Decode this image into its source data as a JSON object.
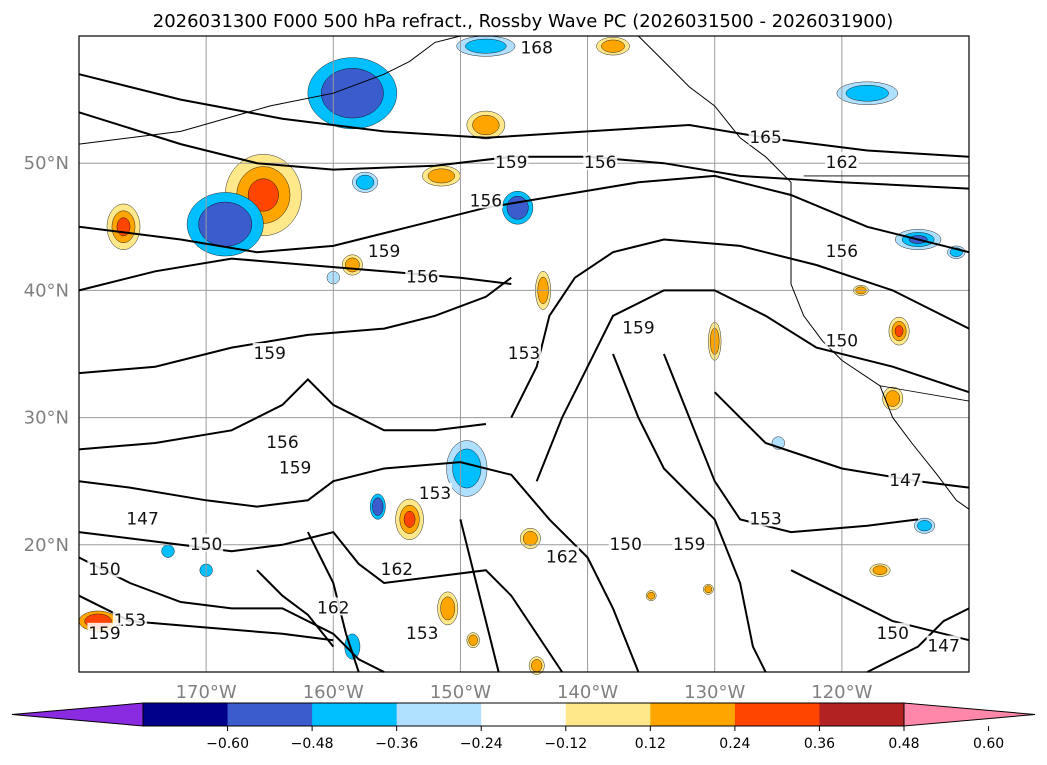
{
  "chart_data": {
    "type": "map-contour",
    "title": "2026031300 F000 500 hPa refract., Rossby Wave PC (2026031500 - 2026031900)",
    "lat_ticks": [
      50,
      40,
      30,
      20
    ],
    "lat_labels": [
      "50°N",
      "40°N",
      "30°N",
      "20°N"
    ],
    "lon_ticks": [
      -170,
      -160,
      -150,
      -140,
      -130,
      -120
    ],
    "lon_labels": [
      "170°W",
      "160°W",
      "150°W",
      "140°W",
      "130°W",
      "120°W"
    ],
    "extent": {
      "lon_min": -180,
      "lon_max": -110,
      "lat_min": 10,
      "lat_max": 60
    },
    "grid": true,
    "colorbar": {
      "extend": "both",
      "colors": [
        "#8a2be2",
        "#00008b",
        "#3a5ccc",
        "#00bfff",
        "#b0e0ff",
        "#ffffff",
        "#ffe88a",
        "#ffa500",
        "#ff4500",
        "#b22222",
        "#ff88aa"
      ],
      "ticks": [
        -0.6,
        -0.48,
        -0.36,
        -0.24,
        -0.12,
        0.12,
        0.24,
        0.36,
        0.48,
        0.6
      ],
      "tick_labels": [
        "−0.60",
        "−0.48",
        "−0.36",
        "−0.24",
        "−0.12",
        "0.12",
        "0.24",
        "0.36",
        "0.48",
        "0.60"
      ]
    },
    "contour_labels": [
      {
        "text": "168",
        "lon": -144,
        "lat": 59
      },
      {
        "text": "165",
        "lon": -126,
        "lat": 52
      },
      {
        "text": "162",
        "lon": -120,
        "lat": 50
      },
      {
        "text": "159",
        "lon": -146,
        "lat": 50
      },
      {
        "text": "156",
        "lon": -139,
        "lat": 50
      },
      {
        "text": "156",
        "lon": -148,
        "lat": 47
      },
      {
        "text": "159",
        "lon": -156,
        "lat": 43
      },
      {
        "text": "156",
        "lon": -153,
        "lat": 41
      },
      {
        "text": "156",
        "lon": -120,
        "lat": 43
      },
      {
        "text": "159",
        "lon": -136,
        "lat": 37
      },
      {
        "text": "159",
        "lon": -165,
        "lat": 35
      },
      {
        "text": "153",
        "lon": -145,
        "lat": 35
      },
      {
        "text": "150",
        "lon": -120,
        "lat": 36
      },
      {
        "text": "156",
        "lon": -164,
        "lat": 28
      },
      {
        "text": "159",
        "lon": -163,
        "lat": 26
      },
      {
        "text": "153",
        "lon": -152,
        "lat": 24
      },
      {
        "text": "153",
        "lon": -126,
        "lat": 22
      },
      {
        "text": "147",
        "lon": -115,
        "lat": 25
      },
      {
        "text": "147",
        "lon": -175,
        "lat": 22
      },
      {
        "text": "150",
        "lon": -170,
        "lat": 20
      },
      {
        "text": "150",
        "lon": -137,
        "lat": 20
      },
      {
        "text": "159",
        "lon": -132,
        "lat": 20
      },
      {
        "text": "150",
        "lon": -178,
        "lat": 18
      },
      {
        "text": "162",
        "lon": -142,
        "lat": 19
      },
      {
        "text": "162",
        "lon": -155,
        "lat": 18
      },
      {
        "text": "162",
        "lon": -160,
        "lat": 15
      },
      {
        "text": "153",
        "lon": -176,
        "lat": 14
      },
      {
        "text": "159",
        "lon": -178,
        "lat": 13
      },
      {
        "text": "153",
        "lon": -153,
        "lat": 13
      },
      {
        "text": "150",
        "lon": -116,
        "lat": 13
      },
      {
        "text": "147",
        "lon": -112,
        "lat": 12
      }
    ]
  }
}
